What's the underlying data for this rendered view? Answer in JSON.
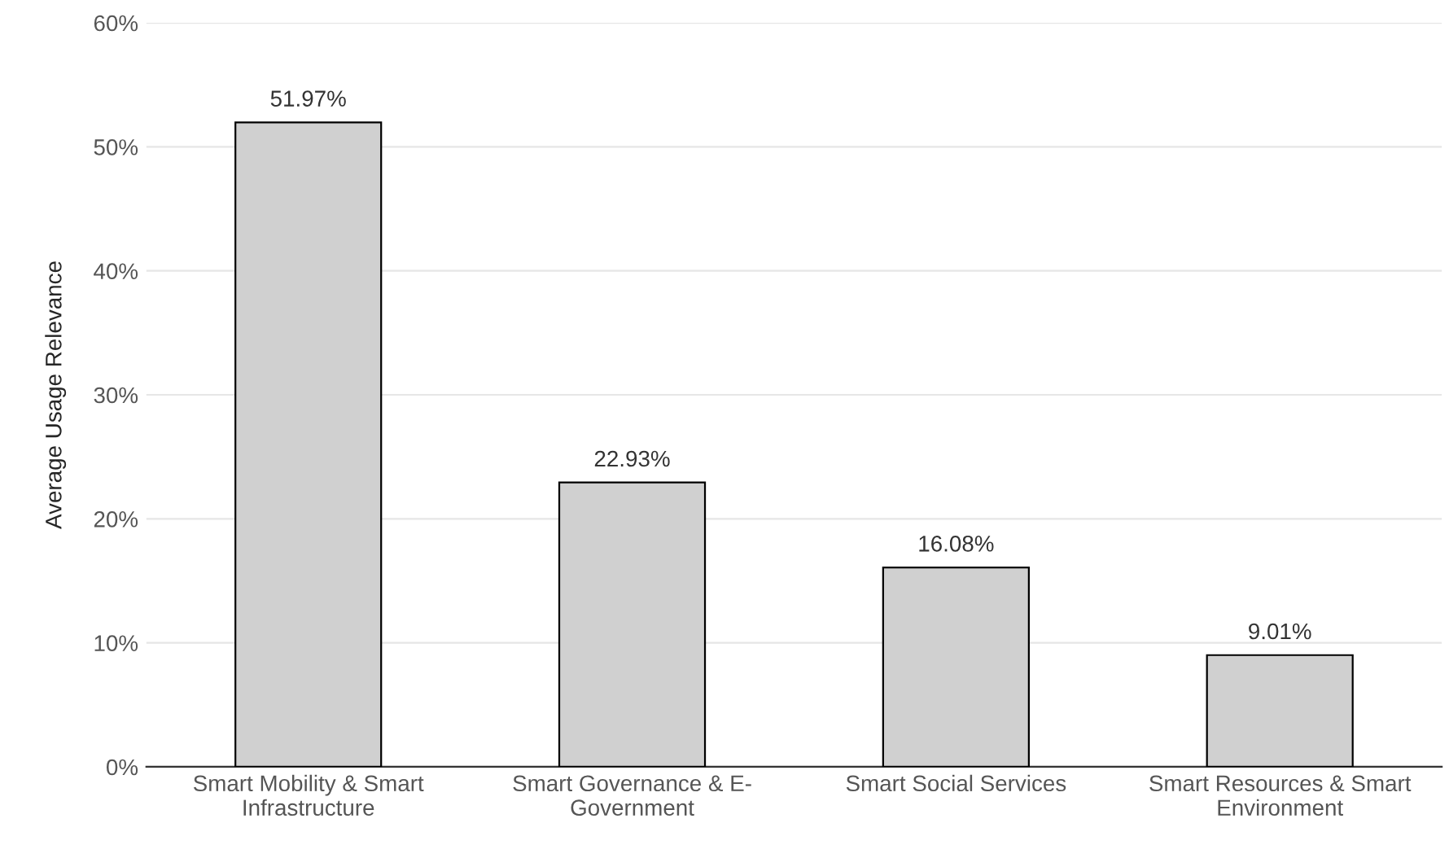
{
  "chart_data": {
    "type": "bar",
    "ylabel": "Average Usage Relevance",
    "categories": [
      "Smart Mobility & Smart Infrastructure",
      "Smart Governance & E-Government",
      "Smart Social Services",
      "Smart Resources & Smart Environment"
    ],
    "values": [
      51.97,
      22.93,
      16.08,
      9.01
    ],
    "value_labels": [
      "51.97%",
      "22.93%",
      "16.08%",
      "9.01%"
    ],
    "color": "#d0d0d0",
    "ylim": [
      0,
      60
    ],
    "yticks": [
      {
        "value": 0,
        "label": "0%"
      },
      {
        "value": 10,
        "label": "10%"
      },
      {
        "value": 20,
        "label": "20%"
      },
      {
        "value": 30,
        "label": "30%"
      },
      {
        "value": 40,
        "label": "40%"
      },
      {
        "value": 50,
        "label": "50%"
      },
      {
        "value": 60,
        "label": "60%"
      }
    ],
    "grid": "y",
    "legend": false
  }
}
